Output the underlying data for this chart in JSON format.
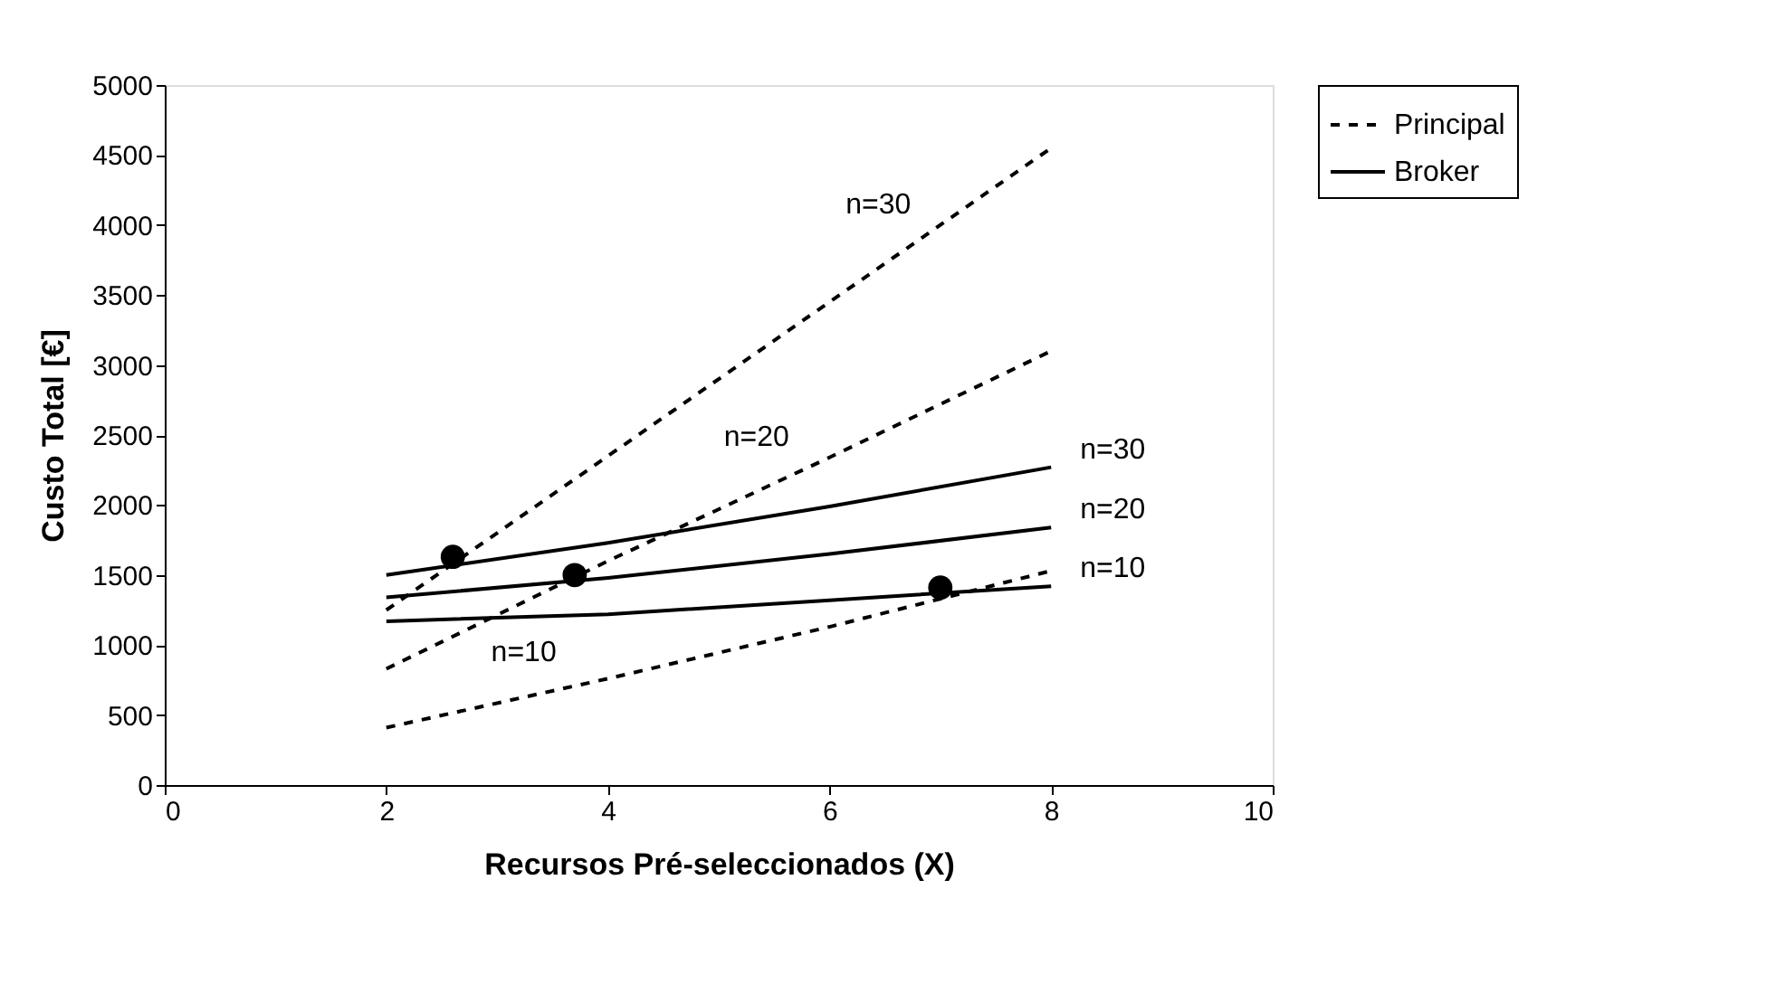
{
  "chart_data": {
    "type": "line",
    "xlabel": "Recursos Pré-seleccionados (X)",
    "ylabel": "Custo Total [€]",
    "xlim": [
      0,
      10
    ],
    "xticks": [
      0,
      2,
      4,
      6,
      8,
      10
    ],
    "ylim": [
      0,
      5000
    ],
    "yticks": [
      0,
      500,
      1000,
      1500,
      2000,
      2500,
      3000,
      3500,
      4000,
      4500,
      5000
    ],
    "grid": false,
    "legend": "right",
    "series": [
      {
        "name": "Principal",
        "color": "#000000",
        "line_style": "dashed",
        "x": [
          2,
          4,
          6,
          8
        ],
        "values": [
          1250,
          2350,
          3450,
          4550
        ]
      },
      {
        "color": "#000000",
        "line_style": "dashed",
        "x": [
          2,
          4,
          6,
          8
        ],
        "values": [
          830,
          1600,
          2340,
          3100
        ]
      },
      {
        "color": "#000000",
        "line_style": "dashed",
        "x": [
          2,
          4,
          6,
          8
        ],
        "values": [
          410,
          760,
          1130,
          1530
        ]
      },
      {
        "name": "Broker",
        "color": "#000000",
        "line_style": "solid",
        "x": [
          2,
          4,
          6,
          8
        ],
        "values": [
          1500,
          1730,
          1990,
          2270
        ]
      },
      {
        "color": "#000000",
        "line_style": "solid",
        "x": [
          2,
          4,
          6,
          8
        ],
        "values": [
          1340,
          1480,
          1650,
          1840
        ]
      },
      {
        "color": "#000000",
        "line_style": "solid",
        "x": [
          2,
          4,
          6,
          8
        ],
        "values": [
          1170,
          1220,
          1320,
          1420
        ]
      },
      {
        "type": "scatter",
        "marker": "circle",
        "color": "#000000",
        "x": [
          2.6,
          3.7,
          7.0
        ],
        "values": [
          1630,
          1500,
          1410
        ]
      }
    ],
    "annotations": [
      {
        "text": "n=30",
        "x": 6.8,
        "y": 3890
      },
      {
        "text": "n=20",
        "x": 5.7,
        "y": 2230
      },
      {
        "text": "n=10",
        "x": 3.6,
        "y": 690
      },
      {
        "text": "n=30",
        "x": 8,
        "y": 2270
      },
      {
        "text": "n=20",
        "x": 8,
        "y": 1840
      },
      {
        "text": "n=10",
        "x": 8,
        "y": 1420
      }
    ]
  }
}
